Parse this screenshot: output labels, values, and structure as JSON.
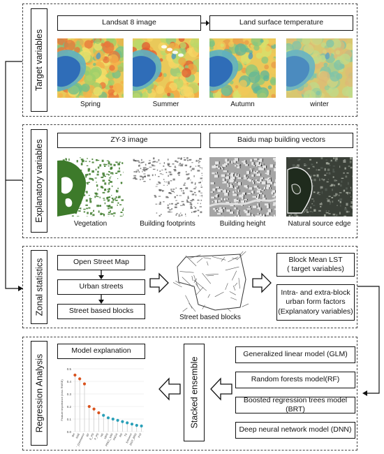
{
  "target": {
    "label": "Target variables",
    "box_left": "Landsat 8 image",
    "box_right": "Land surface temperature",
    "seasons": [
      "Spring",
      "Summer",
      "Autumn",
      "winter"
    ]
  },
  "explanatory": {
    "label": "Explanatory variables",
    "box_left": "ZY-3 image",
    "box_right": "Baidu map building vectors",
    "captions": [
      "Vegetation",
      "Building footprints",
      "Building height",
      "Natural source edge"
    ]
  },
  "zonal": {
    "label": "Zonal statistics",
    "steps": [
      "Open Street Map",
      "Urban streets",
      "Street based blocks"
    ],
    "map_caption": "Street based blocks",
    "out1": "Block Mean LST\n( target variables)",
    "out2": "Intra- and extra-block\nurban form factors\n(Explanatory variables)"
  },
  "regression": {
    "label": "Regression Analysis",
    "explain": "Model explanation",
    "stacked": "Stacked ensemble",
    "models": [
      "Generalized linear model (GLM)",
      "Random forests model(RF)",
      "Boosted regression trees model (BRT)",
      "Deep neural network model (DNN)"
    ],
    "chart_ylabel": "Feature importance (loss: RMSE)"
  },
  "chart_data": {
    "type": "scatter",
    "title": "",
    "ylabel": "Feature importance (loss: RMSE)",
    "ylim": [
      0,
      0.5
    ],
    "categories": [
      "BH",
      "NSE",
      "V_Dominance",
      "BF",
      "E_PD",
      "P_PD",
      "NS",
      "MPD",
      "PREC_VAR",
      "ANOA",
      "RD",
      "TS",
      "Entrance",
      "DIST_BRD",
      "POI"
    ],
    "values": [
      0.45,
      0.42,
      0.38,
      0.2,
      0.18,
      0.15,
      0.13,
      0.11,
      0.1,
      0.09,
      0.08,
      0.07,
      0.06,
      0.05,
      0.045
    ],
    "colors": [
      "#d9531e",
      "#d9531e",
      "#d9531e",
      "#d9531e",
      "#d9531e",
      "#d9531e",
      "#2aa0b8",
      "#2aa0b8",
      "#2aa0b8",
      "#2aa0b8",
      "#2aa0b8",
      "#2aa0b8",
      "#2aa0b8",
      "#2aa0b8",
      "#2aa0b8"
    ]
  },
  "colors": {
    "cold": "#2c4fa8",
    "hot": "#e0603a",
    "veg": "#3d7a2a"
  }
}
